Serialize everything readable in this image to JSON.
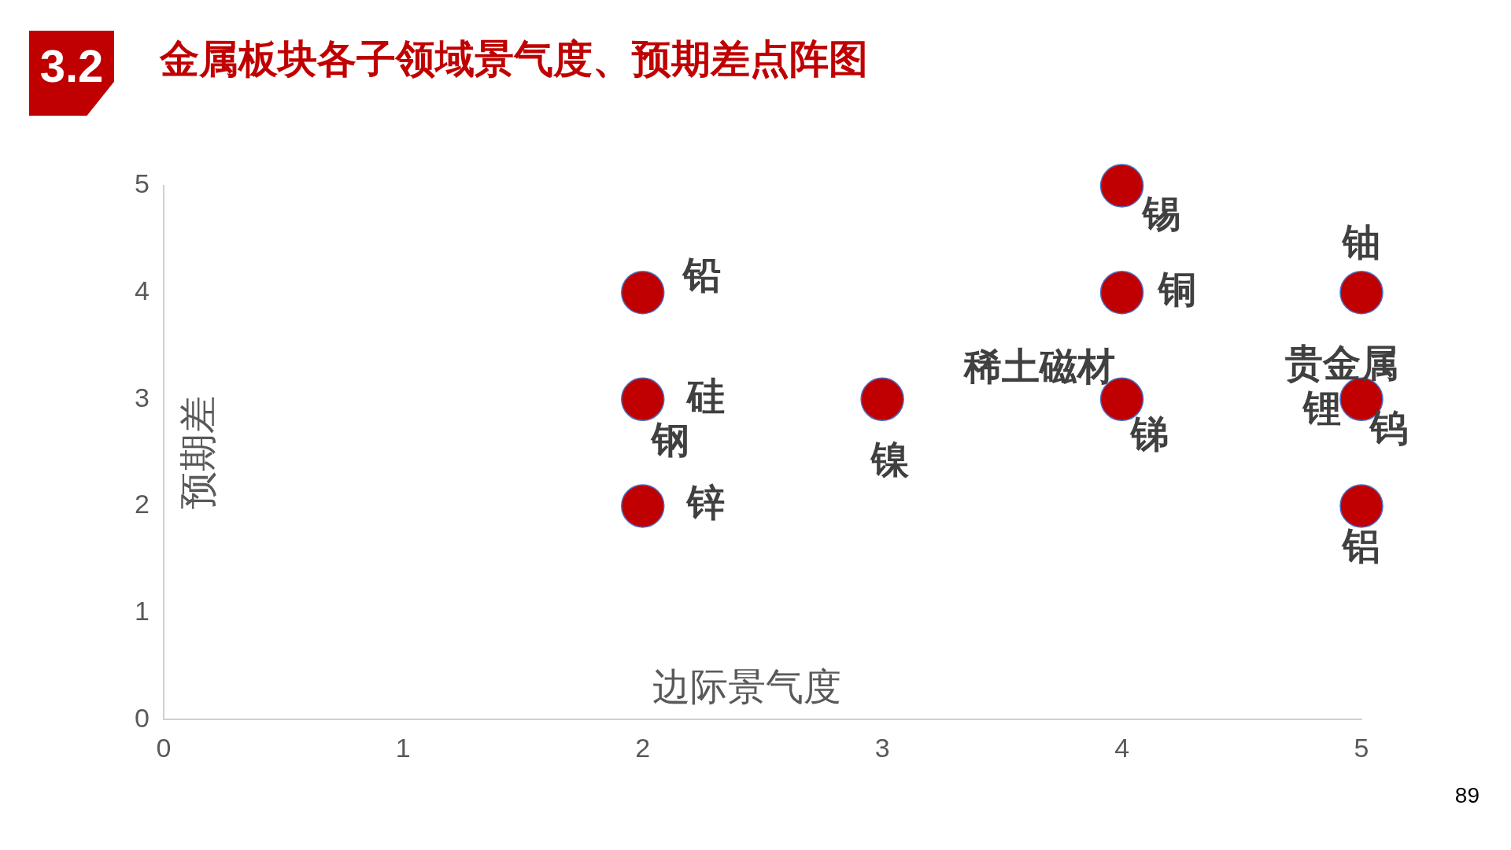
{
  "chart_data": {
    "type": "scatter",
    "title": "金属板块各子领域景气度、预期差点阵图",
    "xlabel": "边际景气度",
    "ylabel": "预期差",
    "x": [
      2,
      2,
      2,
      3,
      4,
      4,
      4,
      5,
      5,
      5
    ],
    "series": [
      {
        "color": "#c00000",
        "values": [
          4,
          3,
          2,
          3,
          5,
          4,
          3,
          4,
          3,
          2
        ]
      }
    ],
    "xlim": [
      0,
      5
    ],
    "xticks": [
      0,
      1,
      2,
      3,
      4,
      5
    ],
    "ylim": [
      0,
      5
    ],
    "yticks": [
      0,
      1,
      2,
      3,
      4,
      5
    ],
    "grid": false,
    "legend": false,
    "marker": "circle",
    "annotations": [
      {
        "text": "铅",
        "x": 2,
        "y": 4
      },
      {
        "text": "硅",
        "x": 2,
        "y": 3
      },
      {
        "text": "钢",
        "x": 2,
        "y": 3
      },
      {
        "text": "锌",
        "x": 2,
        "y": 2
      },
      {
        "text": "镍",
        "x": 3,
        "y": 3
      },
      {
        "text": "锡",
        "x": 4,
        "y": 5
      },
      {
        "text": "铜",
        "x": 4,
        "y": 4
      },
      {
        "text": "稀土磁材",
        "x": 4,
        "y": 3
      },
      {
        "text": "锑",
        "x": 4,
        "y": 3
      },
      {
        "text": "铀",
        "x": 5,
        "y": 4
      },
      {
        "text": "贵金属",
        "x": 5,
        "y": 3
      },
      {
        "text": "锂",
        "x": 5,
        "y": 3
      },
      {
        "text": "钨",
        "x": 5,
        "y": 3
      },
      {
        "text": "铝",
        "x": 5,
        "y": 2
      },
      "3.2",
      "89"
    ]
  }
}
